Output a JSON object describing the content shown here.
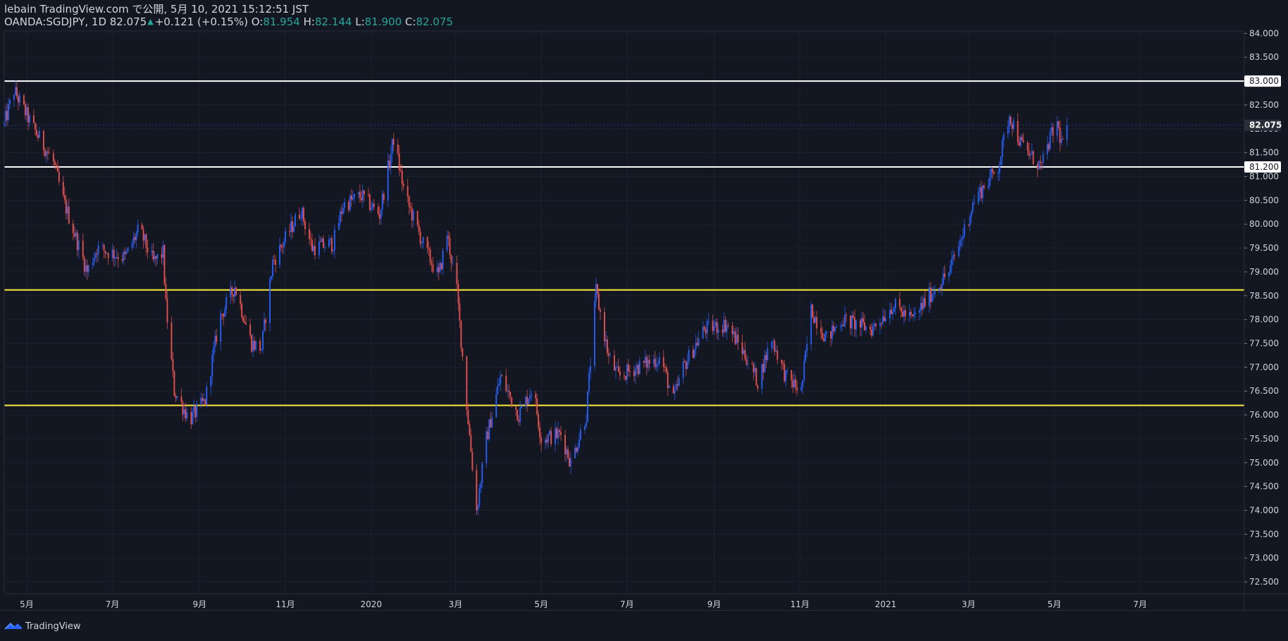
{
  "header": {
    "line1": "lebain TradingView.com で公開, 5月 10, 2021 15:12:51 JST",
    "symbol": "OANDA:SGDJPY, 1D 82.075",
    "change": "+0.121 (+0.15%)",
    "o_label": "O:",
    "o_value": "81.954",
    "h_label": "H:",
    "h_value": "82.144",
    "l_label": "L:",
    "l_value": "81.900",
    "c_label": "C:",
    "c_value": "82.075"
  },
  "footer": {
    "brand": "TradingView"
  },
  "colors": {
    "background": "#131722",
    "up": "#2962ff",
    "down": "#ef5350",
    "resistance_line": "#ffffff",
    "support_line": "#ffeb3b",
    "price_change": "#26a69a"
  },
  "chart_data": {
    "type": "candlestick",
    "symbol": "OANDA:SGDJPY",
    "interval": "1D",
    "ylim": [
      72.25,
      84.05
    ],
    "y_ticks": [
      "84.000",
      "83.500",
      "83.000",
      "82.500",
      "82.000",
      "81.500",
      "81.000",
      "80.500",
      "80.000",
      "79.500",
      "79.000",
      "78.500",
      "78.000",
      "77.500",
      "77.000",
      "76.500",
      "76.000",
      "75.500",
      "75.000",
      "74.500",
      "74.000",
      "73.500",
      "73.000",
      "72.500"
    ],
    "x_ticks": [
      "5月",
      "7月",
      "9月",
      "11月",
      "2020",
      "3月",
      "5月",
      "7月",
      "9月",
      "11月",
      "2021",
      "3月",
      "5月",
      "7月"
    ],
    "last_price": "82.075",
    "price_level_labels": [
      "83.000",
      "81.200"
    ],
    "horizontal_lines": [
      {
        "price": 83.0,
        "color": "#ffffff"
      },
      {
        "price": 81.2,
        "color": "#ffffff"
      },
      {
        "price": 78.62,
        "color": "#ffeb3b"
      },
      {
        "price": 76.2,
        "color": "#ffeb3b"
      }
    ],
    "price_path": [
      [
        "2019-04-15",
        82.1
      ],
      [
        "2019-04-22",
        82.8
      ],
      [
        "2019-05-06",
        82.0
      ],
      [
        "2019-05-20",
        81.3
      ],
      [
        "2019-05-27",
        80.5
      ],
      [
        "2019-06-03",
        79.9
      ],
      [
        "2019-06-13",
        79.0
      ],
      [
        "2019-06-20",
        79.5
      ],
      [
        "2019-07-10",
        79.3
      ],
      [
        "2019-07-20",
        79.9
      ],
      [
        "2019-07-30",
        79.2
      ],
      [
        "2019-08-06",
        79.4
      ],
      [
        "2019-08-08",
        78.3
      ],
      [
        "2019-08-14",
        76.5
      ],
      [
        "2019-08-25",
        75.9
      ],
      [
        "2019-09-05",
        76.3
      ],
      [
        "2019-09-15",
        78.0
      ],
      [
        "2019-09-26",
        78.7
      ],
      [
        "2019-10-08",
        77.5
      ],
      [
        "2019-10-15",
        77.4
      ],
      [
        "2019-10-23",
        79.2
      ],
      [
        "2019-11-12",
        80.3
      ],
      [
        "2019-11-20",
        79.5
      ],
      [
        "2019-12-05",
        79.6
      ],
      [
        "2019-12-12",
        80.4
      ],
      [
        "2019-12-25",
        80.6
      ],
      [
        "2020-01-07",
        80.2
      ],
      [
        "2020-01-17",
        81.8
      ],
      [
        "2020-01-25",
        80.6
      ],
      [
        "2020-02-08",
        79.5
      ],
      [
        "2020-02-18",
        78.9
      ],
      [
        "2020-02-24",
        79.8
      ],
      [
        "2020-03-02",
        78.6
      ],
      [
        "2020-03-09",
        76.2
      ],
      [
        "2020-03-16",
        74.0
      ],
      [
        "2020-03-23",
        75.5
      ],
      [
        "2020-04-02",
        76.8
      ],
      [
        "2020-04-15",
        76.0
      ],
      [
        "2020-04-25",
        76.6
      ],
      [
        "2020-05-01",
        75.5
      ],
      [
        "2020-05-15",
        75.6
      ],
      [
        "2020-05-22",
        75.0
      ],
      [
        "2020-06-02",
        76.0
      ],
      [
        "2020-06-09",
        78.6
      ],
      [
        "2020-06-18",
        77.2
      ],
      [
        "2020-06-25",
        76.8
      ],
      [
        "2020-07-08",
        77.0
      ],
      [
        "2020-07-25",
        77.2
      ],
      [
        "2020-08-03",
        76.3
      ],
      [
        "2020-08-10",
        77.0
      ],
      [
        "2020-08-25",
        77.8
      ],
      [
        "2020-09-10",
        77.9
      ],
      [
        "2020-09-24",
        77.2
      ],
      [
        "2020-10-02",
        76.7
      ],
      [
        "2020-10-12",
        77.6
      ],
      [
        "2020-10-22",
        76.8
      ],
      [
        "2020-11-02",
        76.5
      ],
      [
        "2020-11-09",
        78.2
      ],
      [
        "2020-11-20",
        77.6
      ],
      [
        "2020-12-01",
        78.0
      ],
      [
        "2020-12-22",
        77.8
      ],
      [
        "2021-01-06",
        78.3
      ],
      [
        "2021-01-20",
        78.0
      ],
      [
        "2021-02-01",
        78.5
      ],
      [
        "2021-02-15",
        79.0
      ],
      [
        "2021-02-25",
        79.8
      ],
      [
        "2021-03-05",
        80.5
      ],
      [
        "2021-03-12",
        80.8
      ],
      [
        "2021-03-22",
        81.2
      ],
      [
        "2021-03-30",
        82.3
      ],
      [
        "2021-04-07",
        81.7
      ],
      [
        "2021-04-15",
        81.4
      ],
      [
        "2021-04-22",
        81.2
      ],
      [
        "2021-04-28",
        81.8
      ],
      [
        "2021-05-03",
        82.1
      ],
      [
        "2021-05-06",
        81.7
      ],
      [
        "2021-05-10",
        82.075
      ]
    ]
  }
}
